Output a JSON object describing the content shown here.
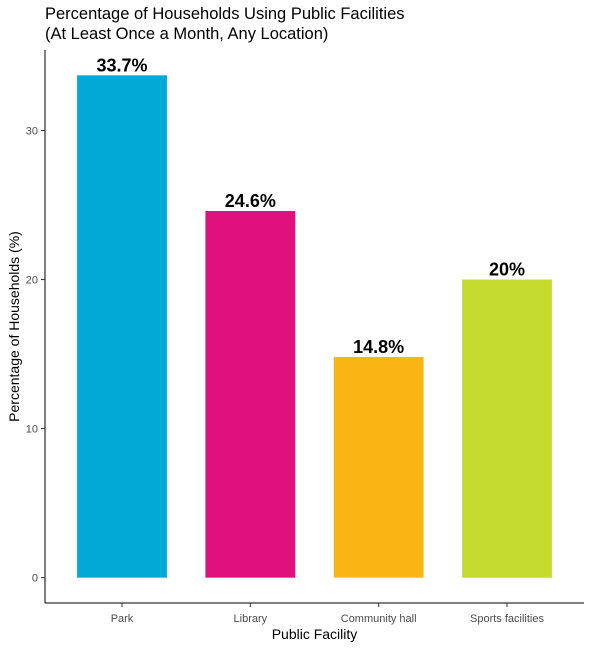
{
  "chart_data": {
    "type": "bar",
    "title": "Percentage of Households Using Public Facilities",
    "subtitle": "(At Least Once a Month, Any Location)",
    "xlabel": "Public Facility",
    "ylabel": "Percentage of Households (%)",
    "categories": [
      "Park",
      "Library",
      "Community hall",
      "Sports facilities"
    ],
    "values": [
      33.7,
      24.6,
      14.8,
      20
    ],
    "data_labels": [
      "33.7%",
      "24.6%",
      "14.8%",
      "20%"
    ],
    "colors": [
      "#00A9D6",
      "#E0107E",
      "#FAB514",
      "#C5DC2E"
    ],
    "ylim": [
      -1.7,
      35.4
    ],
    "yticks": [
      0,
      10,
      20,
      30
    ],
    "ytick_labels": [
      "0",
      "10",
      "20",
      "30"
    ],
    "grid": false,
    "legend": "none"
  }
}
